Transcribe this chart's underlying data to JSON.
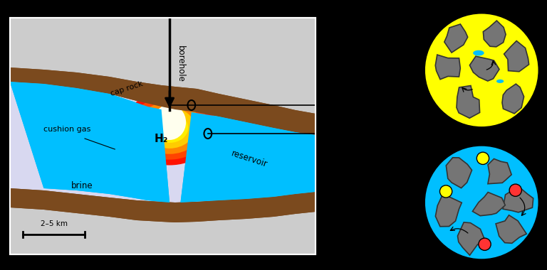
{
  "bg_color": "#000000",
  "gray_bg": "#cccccc",
  "cap_rock_color": "#7B4A1E",
  "brine_color": "#00BFFF",
  "lavender_color": "#d8d8f0",
  "h2_yellow": "#FFFF00",
  "h2_red": "#FF2200",
  "yellow_circle_bg": "#FFFF00",
  "blue_circle_bg": "#00BFFF",
  "rock_gray": "#808080",
  "rock_edge": "#404040",
  "borehole_label": "borehole",
  "h2_label": "H₂",
  "cushion_label": "cushion gas",
  "brine_label": "brine",
  "reservoir_label": "reservoir",
  "caprock_label": "cap rock",
  "scale_label": "2–5 km",
  "dash_color": "#3355CC"
}
